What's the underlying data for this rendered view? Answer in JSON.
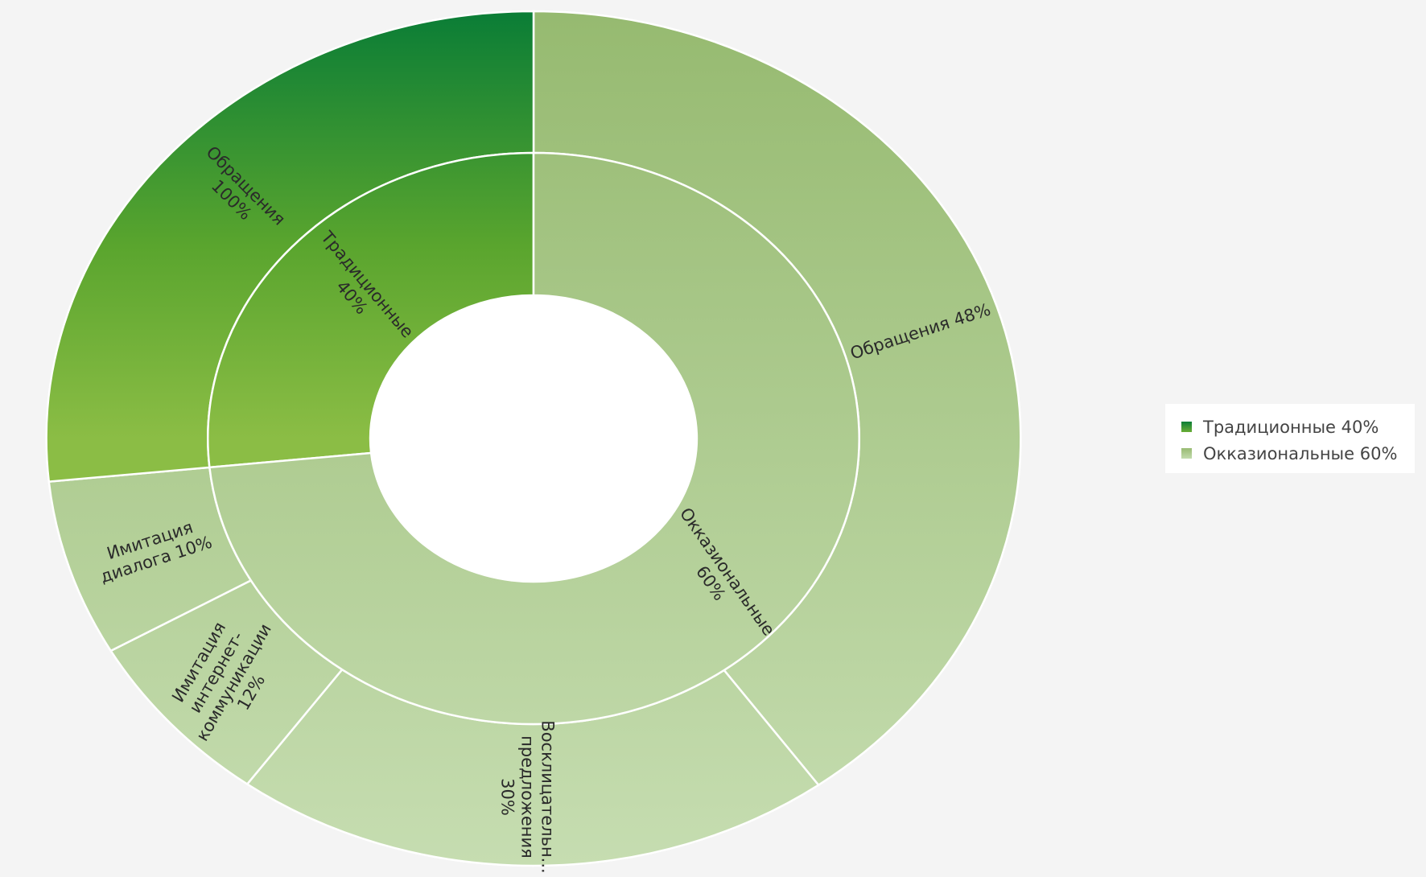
{
  "chart_data": {
    "type": "sunburst",
    "colors": {
      "Традиционные": "#2e8f3a",
      "Окказиональные": "#b2d198"
    },
    "inner_ring": [
      {
        "name": "Традиционные",
        "percent": 40,
        "label": "Традиционные\n40%"
      },
      {
        "name": "Окказиональные",
        "percent": 60,
        "label": "Окказиональные\n60%"
      }
    ],
    "outer_ring": [
      {
        "parent": "Окказиональные",
        "name": "Обращения",
        "percent": 48,
        "label": "Обращения 48%"
      },
      {
        "parent": "Окказиональные",
        "name": "Восклицательные предложения",
        "percent": 30,
        "label": "Восклицательн...\nпредложения\n30%"
      },
      {
        "parent": "Окказиональные",
        "name": "Имитация интернет-коммуникации",
        "percent": 12,
        "label": "Имитация\nинтернет-\nкоммуникации\n12%"
      },
      {
        "parent": "Окказиональные",
        "name": "Имитация диалога",
        "percent": 10,
        "label": "Имитация\nдиалога 10%"
      },
      {
        "parent": "Традиционные",
        "name": "Обращения",
        "percent": 100,
        "label": "Обращения\n100%"
      }
    ],
    "legend": {
      "placement": "right",
      "items": [
        "Традиционные 40%",
        "Окказиональные 60%"
      ]
    }
  }
}
